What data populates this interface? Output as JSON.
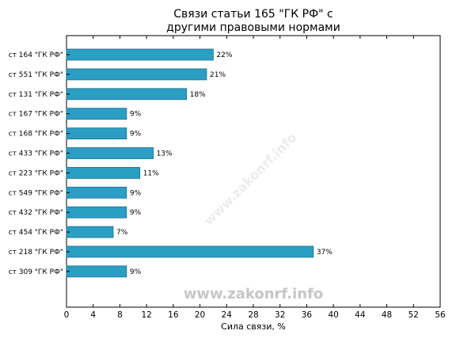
{
  "chart_data": {
    "type": "bar",
    "orientation": "horizontal",
    "title_line1": "Связи статьи 165 \"ГК РФ\" с",
    "title_line2": "другими правовыми нормами",
    "xlabel": "Сила связи, %",
    "xlim": [
      0,
      56
    ],
    "xticks": [
      "0",
      "4",
      "8",
      "12",
      "16",
      "20",
      "24",
      "28",
      "32",
      "36",
      "40",
      "44",
      "48",
      "52",
      "56"
    ],
    "categories": [
      "ст 164 \"ГК РФ\"",
      "ст 551 \"ГК РФ\"",
      "ст 131 \"ГК РФ\"",
      "ст 167 \"ГК РФ\"",
      "ст 168 \"ГК РФ\"",
      "ст 433 \"ГК РФ\"",
      "ст 223 \"ГК РФ\"",
      "ст 549 \"ГК РФ\"",
      "ст 432 \"ГК РФ\"",
      "ст 454 \"ГК РФ\"",
      "ст 218 \"ГК РФ\"",
      "ст 309 \"ГК РФ\""
    ],
    "values": [
      22,
      21,
      18,
      9,
      9,
      13,
      11,
      9,
      9,
      7,
      37,
      9
    ],
    "value_labels": [
      "22%",
      "21%",
      "18%",
      "9%",
      "9%",
      "13%",
      "11%",
      "9%",
      "9%",
      "7%",
      "37%",
      "9%"
    ],
    "bar_color": "#2b9ec4",
    "bar_edge_color": "#1f6f8b",
    "grid": false
  },
  "watermark": "www.zakonrf.info"
}
